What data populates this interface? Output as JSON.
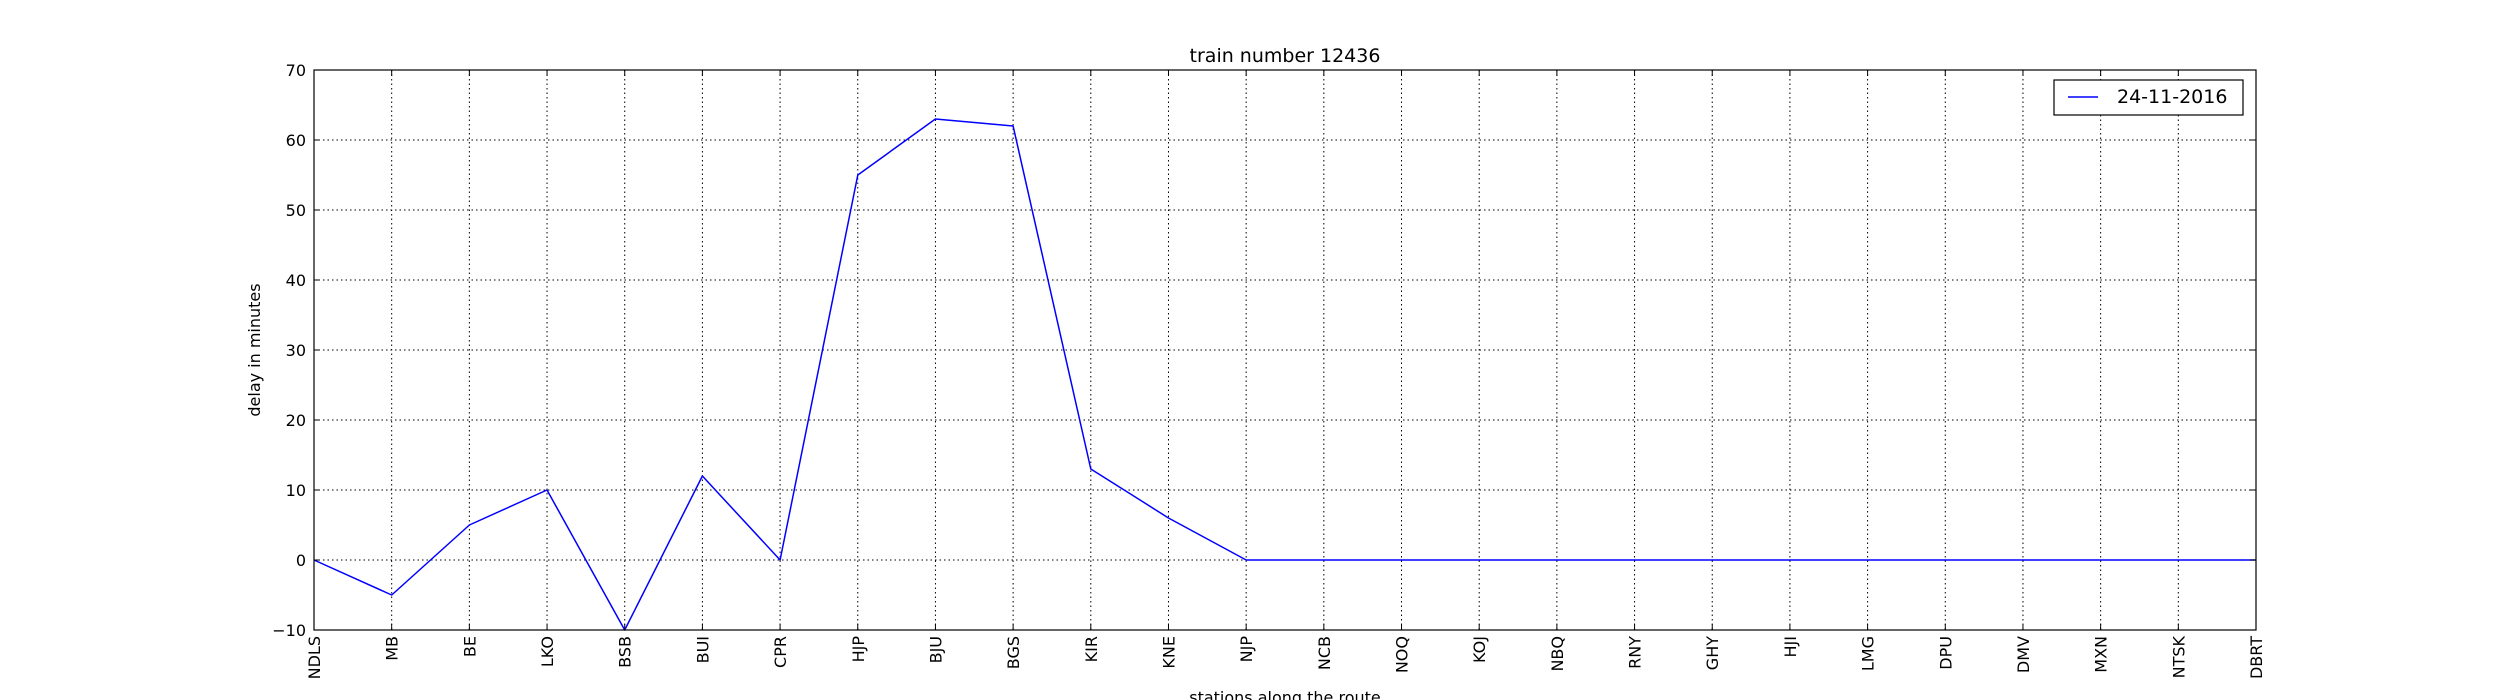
{
  "chart_data": {
    "type": "line",
    "title": "train number 12436",
    "xlabel": "stations along the route",
    "ylabel": "delay in minutes",
    "categories": [
      "NDLS",
      "MB",
      "BE",
      "LKO",
      "BSB",
      "BUI",
      "CPR",
      "HJP",
      "BJU",
      "BGS",
      "KIR",
      "KNE",
      "NJP",
      "NCB",
      "NOQ",
      "KOJ",
      "NBQ",
      "RNY",
      "GHY",
      "HJI",
      "LMG",
      "DPU",
      "DMV",
      "MXN",
      "NTSK",
      "DBRT"
    ],
    "series": [
      {
        "name": "24-11-2016",
        "color": "#0000ff",
        "values": [
          0,
          -5,
          5,
          10,
          -10,
          12,
          0,
          55,
          63,
          62,
          13,
          6,
          0,
          0,
          0,
          0,
          0,
          0,
          0,
          0,
          0,
          0,
          0,
          0,
          0,
          0
        ]
      }
    ],
    "ylim": [
      -10,
      70
    ],
    "yticks": [
      -10,
      0,
      10,
      20,
      30,
      40,
      50,
      60,
      70
    ],
    "grid": true,
    "legend_position": "top-right"
  }
}
